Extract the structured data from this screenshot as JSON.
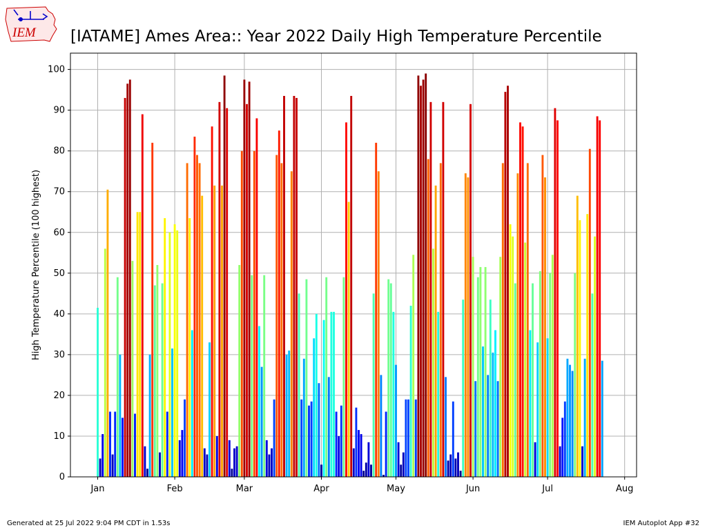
{
  "title": "[IATAME] Ames Area:: Year 2022 Daily High Temperature Percentile",
  "logo_text": "IEM",
  "footer": {
    "left": "Generated at 25 Jul 2022 9:04 PM CDT in 1.53s",
    "right": "IEM Autoplot App #32"
  },
  "colors": {
    "grid": "#b0b0b0",
    "logo_red": "#cc0000",
    "logo_blue": "#0000cc"
  },
  "chart_data": {
    "type": "bar",
    "ylabel": "High Temperature Percentile (100 highest)",
    "xlabel": "",
    "ylim": [
      0,
      104
    ],
    "yticks": [
      0,
      10,
      20,
      30,
      40,
      50,
      60,
      70,
      80,
      90,
      100
    ],
    "xticks": [
      {
        "label": "Jan",
        "day": 1
      },
      {
        "label": "Feb",
        "day": 32
      },
      {
        "label": "Mar",
        "day": 60
      },
      {
        "label": "Apr",
        "day": 91
      },
      {
        "label": "May",
        "day": 121
      },
      {
        "label": "Jun",
        "day": 152
      },
      {
        "label": "Jul",
        "day": 182
      },
      {
        "label": "Aug",
        "day": 213
      }
    ],
    "grid": true,
    "colormap": "jet",
    "start_date": "2022-01-01",
    "values": [
      41.5,
      4.5,
      10.5,
      56,
      70.5,
      16,
      5.5,
      16,
      49,
      30,
      14.5,
      93,
      96.5,
      97.5,
      53,
      15.5,
      65,
      65,
      89,
      7.5,
      2,
      30,
      82,
      47,
      52,
      6,
      47.5,
      63.5,
      16,
      60,
      31.5,
      62,
      60.5,
      9,
      11.5,
      19,
      77,
      63.5,
      36,
      83.5,
      79,
      77,
      69,
      7,
      5.5,
      33,
      86,
      71.5,
      10,
      92,
      71.5,
      98.5,
      90.5,
      9,
      2,
      7,
      7.5,
      52,
      80,
      97.5,
      91.5,
      97,
      49.5,
      80,
      88,
      37,
      27,
      49.5,
      9,
      5.5,
      7,
      19,
      79,
      85,
      77,
      93.5,
      30,
      31,
      75,
      93.5,
      93,
      45,
      19,
      29,
      48.5,
      17.5,
      18.5,
      34,
      40,
      23,
      3,
      38.5,
      49,
      24.5,
      40.5,
      40.5,
      16,
      10,
      17.5,
      49,
      87,
      67.5,
      93.5,
      7,
      17,
      11.5,
      10.5,
      1.5,
      3.5,
      8.5,
      3,
      45,
      82,
      75,
      25,
      0.5,
      16,
      48.5,
      47.5,
      40.5,
      27.5,
      8.5,
      3,
      6,
      19,
      19,
      42,
      54.5,
      19,
      98.5,
      96,
      97.5,
      99,
      78,
      92,
      56,
      71.5,
      40.5,
      77,
      92,
      24.5,
      4,
      5.5,
      18.5,
      4.5,
      6,
      1.5,
      43.5,
      74.5,
      73.5,
      91.5,
      54,
      23.5,
      49,
      51.5,
      32,
      51.5,
      25,
      43.5,
      30.5,
      36,
      23.5,
      54,
      77,
      94.5,
      96,
      62,
      59,
      47.5,
      74.5,
      87,
      86,
      57.5,
      77,
      36,
      47.5,
      8.5,
      33,
      50.5,
      79,
      73.5,
      34,
      50,
      54.5,
      90.5,
      87.5,
      7.5,
      14.5,
      18.5,
      29,
      27.5,
      26,
      50,
      69,
      63,
      7.5,
      29,
      64.5,
      80.5,
      45,
      59,
      88.5,
      87.5,
      28.5
    ]
  }
}
